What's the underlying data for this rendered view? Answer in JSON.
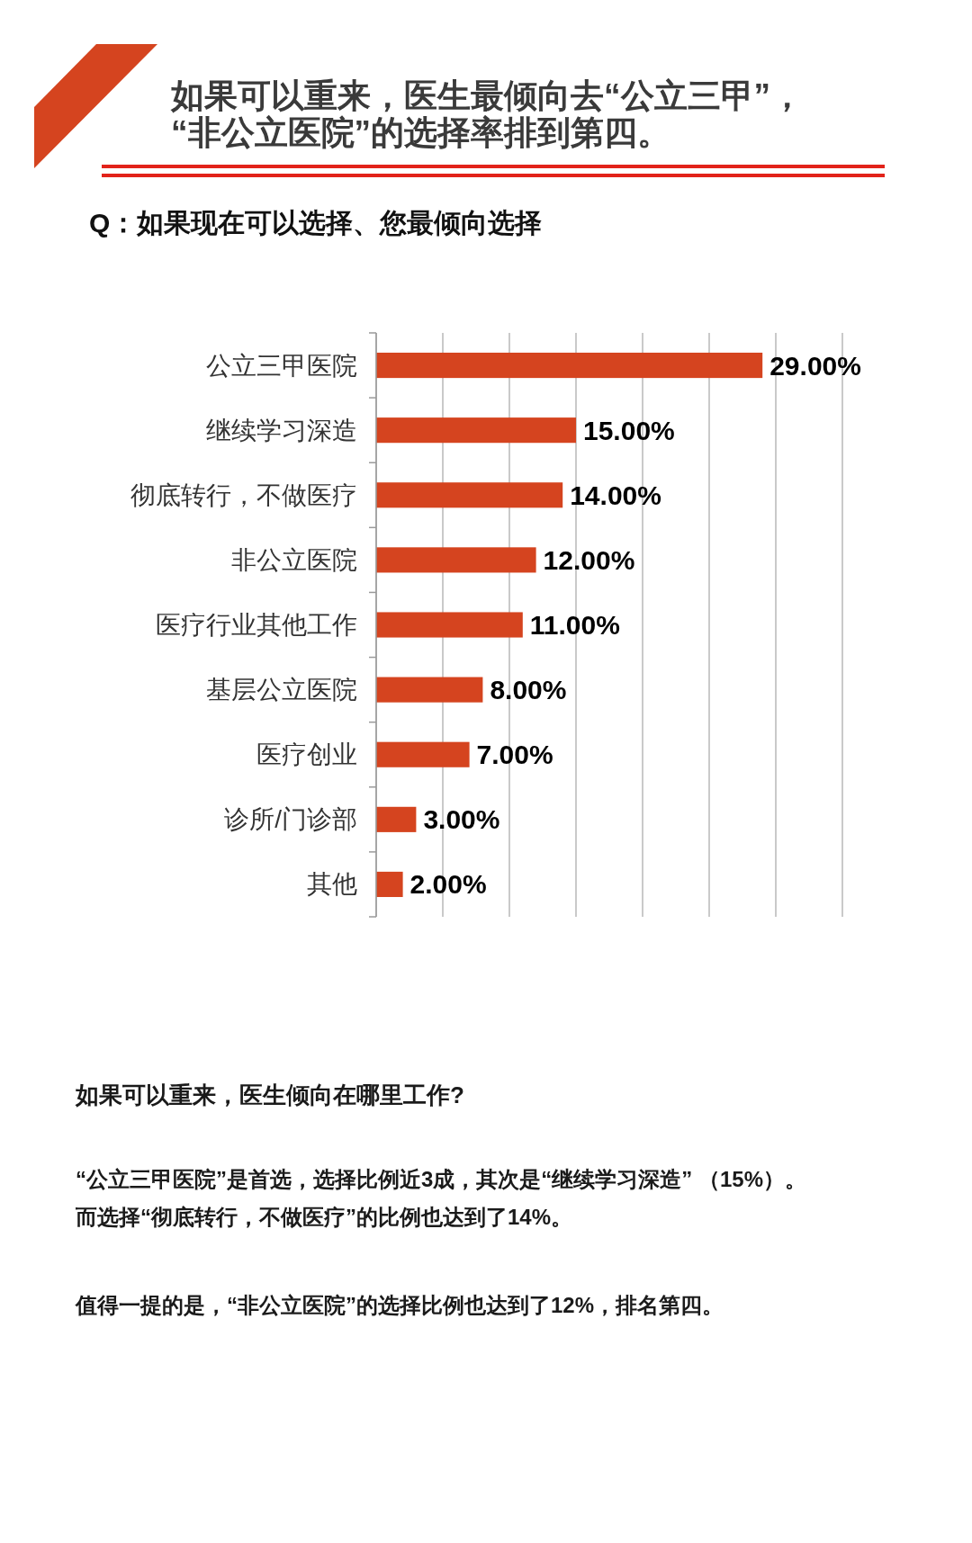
{
  "chart_data": {
    "type": "bar",
    "orientation": "horizontal",
    "title": "如果可以重来，医生最倾向去“公立三甲”，“非公立医院”的选择率排到第四。",
    "subtitle": "Q：如果现在可以选择、您最倾向选择",
    "categories": [
      "公立三甲医院",
      "继续学习深造",
      "彻底转行，不做医疗",
      "非公立医院",
      "医疗行业其他工作",
      "基层公立医院",
      "医疗创业",
      "诊所/门诊部",
      "其他"
    ],
    "values": [
      29,
      15,
      14,
      12,
      11,
      8,
      7,
      3,
      2
    ],
    "value_labels": [
      "29.00%",
      "15.00%",
      "14.00%",
      "12.00%",
      "11.00%",
      "8.00%",
      "7.00%",
      "3.00%",
      "2.00%"
    ],
    "color": "#d5441f",
    "xlim": [
      0,
      35
    ],
    "xticks": [
      0,
      5,
      10,
      15,
      20,
      25,
      30,
      35
    ],
    "grid": "x",
    "tick_labels": "y",
    "annotations": [
      "如果可以重来，医生倾向在哪里工作?",
      "“公立三甲医院”是首选，选择比例近3成，其次是“继续学习深造” （15%）。而选择“彻底转行，不做医疗”的比例也达到了14%。",
      "值得一提的是，“非公立医院”的选择比例也达到了12%，排名第四。"
    ]
  }
}
